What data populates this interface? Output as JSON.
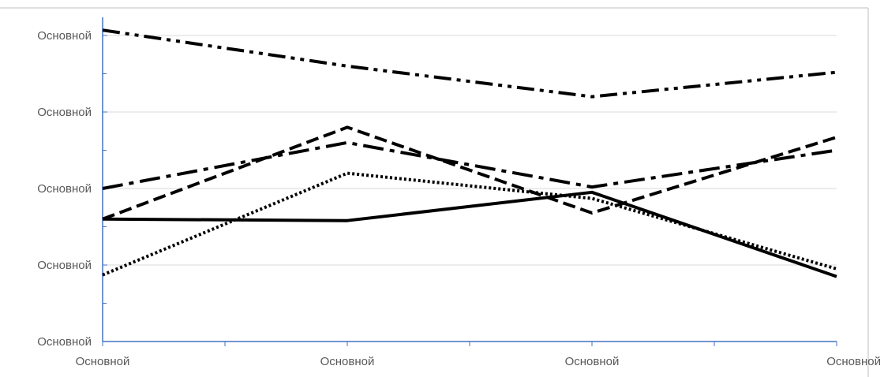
{
  "chart_data": {
    "type": "line",
    "title": "",
    "xlabel": "",
    "ylabel": "",
    "categories": [
      "Основной",
      "Основной",
      "Основной",
      "Основной"
    ],
    "y_tick_labels": [
      "Основной",
      "Основной",
      "Основной",
      "Основной",
      "Основной"
    ],
    "ylim": [
      0,
      4
    ],
    "grid": true,
    "series": [
      {
        "style": "solid",
        "values": [
          1.6,
          1.58,
          1.95,
          0.85
        ]
      },
      {
        "style": "dashed",
        "values": [
          1.6,
          2.8,
          1.68,
          2.67
        ]
      },
      {
        "style": "dotted",
        "values": [
          0.87,
          2.2,
          1.87,
          0.95
        ]
      },
      {
        "style": "dash-dot",
        "values": [
          2.0,
          2.6,
          2.02,
          2.5
        ]
      },
      {
        "style": "dash-dot-dot",
        "values": [
          4.07,
          3.6,
          3.2,
          3.52
        ]
      }
    ],
    "colors": {
      "axis": "#4472c4",
      "grid": "#d9d9d9",
      "line": "#000000",
      "label": "#595959",
      "frame": "#bfbfbf"
    }
  }
}
